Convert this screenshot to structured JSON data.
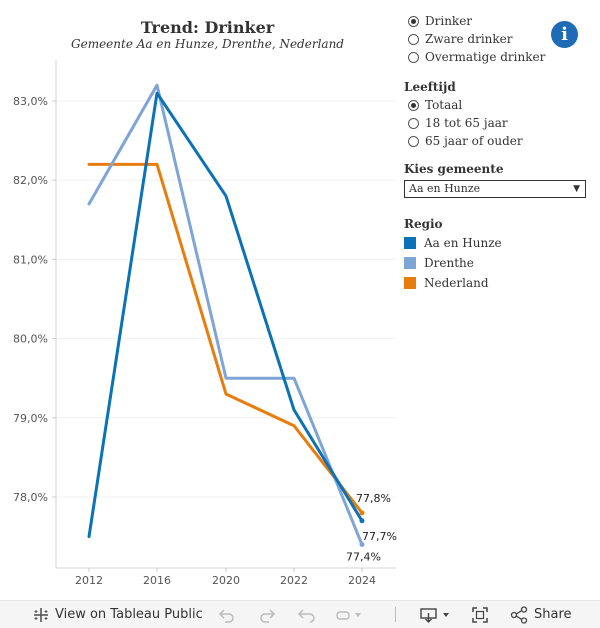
{
  "title": "Trend:  Drinker",
  "subtitle": "Gemeente Aa en Hunze, Drenthe, Nederland",
  "indicator_options": [
    {
      "label": "Drinker",
      "selected": true
    },
    {
      "label": "Zware drinker",
      "selected": false
    },
    {
      "label": "Overmatige drinker",
      "selected": false
    }
  ],
  "leeftijd": {
    "title": "Leeftijd",
    "options": [
      {
        "label": "Totaal",
        "selected": true
      },
      {
        "label": "18 tot 65 jaar",
        "selected": false
      },
      {
        "label": "65 jaar of ouder",
        "selected": false
      }
    ]
  },
  "gemeente": {
    "title": "Kies  gemeente",
    "value": "Aa en Hunze",
    "arrow": "▼"
  },
  "regio": {
    "title": "Regio",
    "items": [
      {
        "label": "Aa en Hunze",
        "color": "#0b72b5"
      },
      {
        "label": "Drenthe",
        "color": "#7fa4d6"
      },
      {
        "label": "Nederland",
        "color": "#e87d0d"
      }
    ]
  },
  "info_icon": "i",
  "chart_data": {
    "type": "line",
    "x": [
      2012,
      2016,
      2020,
      2022,
      2024
    ],
    "series": [
      {
        "name": "Nederland",
        "color": "#e87d0d",
        "values": [
          82.2,
          82.2,
          79.3,
          78.9,
          77.8
        ],
        "end_label": "77,8%"
      },
      {
        "name": "Drenthe",
        "color": "#7fa4d6",
        "values": [
          81.7,
          83.2,
          79.5,
          79.5,
          77.4
        ],
        "end_label": "77,4%"
      },
      {
        "name": "Aa en Hunze",
        "color": "#0b72b5",
        "values": [
          77.5,
          83.1,
          81.8,
          79.1,
          77.7
        ],
        "end_label": "77,7%"
      }
    ],
    "x_ticks": [
      "2012",
      "2016",
      "2020",
      "2022",
      "2024"
    ],
    "y_ticks": [
      {
        "value": 78,
        "label": "78,0%"
      },
      {
        "value": 79,
        "label": "79,0%"
      },
      {
        "value": 80,
        "label": "80,0%"
      },
      {
        "value": 81,
        "label": "81,0%"
      },
      {
        "value": 82,
        "label": "82,0%"
      },
      {
        "value": 83,
        "label": "83,0%"
      }
    ],
    "ylim": [
      77.1,
      83.6
    ]
  },
  "footer": {
    "view_label": "View on Tableau Public",
    "share_label": "Share"
  }
}
